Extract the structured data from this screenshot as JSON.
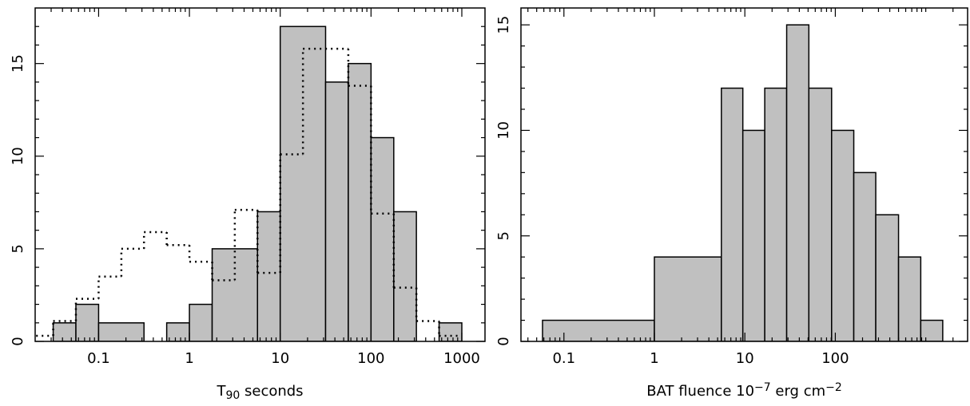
{
  "chart_data": [
    {
      "type": "histogram",
      "log_x": true,
      "xlabel": [
        "T",
        "90",
        " seconds"
      ],
      "xlim": [
        0.02,
        1800
      ],
      "ylim": [
        0,
        18
      ],
      "xticks": [
        0.1,
        1,
        10,
        100,
        1000
      ],
      "xminor_ticks": [
        0.03,
        0.04,
        0.05,
        0.06,
        0.07,
        0.08,
        0.09,
        0.2,
        0.3,
        0.4,
        0.5,
        0.6,
        0.7,
        0.8,
        0.9,
        2,
        3,
        4,
        5,
        6,
        7,
        8,
        9,
        20,
        30,
        40,
        50,
        60,
        70,
        80,
        90,
        200,
        300,
        400,
        500,
        600,
        700,
        800,
        900
      ],
      "yticks": [
        0,
        5,
        10,
        15
      ],
      "yminor_ticks": [
        1,
        2,
        3,
        4,
        6,
        7,
        8,
        9,
        11,
        12,
        13,
        14,
        16,
        17
      ],
      "series": [
        {
          "style": "solid",
          "color": "#c0c0c0",
          "bins": [
            0.0316,
            0.0562,
            0.1,
            0.316,
            0.562,
            1,
            1.78,
            5.62,
            10,
            31.6,
            56.2,
            100,
            178,
            316,
            562,
            1000
          ],
          "values": [
            1,
            2,
            1,
            0,
            1,
            2,
            5,
            7,
            17,
            14,
            15,
            11,
            7,
            0,
            1
          ]
        },
        {
          "style": "dotted",
          "color": "#000000",
          "bins": [
            0.0178,
            0.0316,
            0.0562,
            0.1,
            0.178,
            0.316,
            0.562,
            1,
            1.78,
            3.16,
            5.62,
            10,
            17.8,
            56.2,
            100,
            178,
            316,
            562,
            1000
          ],
          "values": [
            0.3,
            1.1,
            2.3,
            3.5,
            5.0,
            5.9,
            5.2,
            4.3,
            3.3,
            7.1,
            3.7,
            10.1,
            15.8,
            13.8,
            6.9,
            2.9,
            1.1,
            0.3
          ]
        }
      ]
    },
    {
      "type": "histogram",
      "log_x": true,
      "xlabel": [
        "BAT fluence 10",
        "−7",
        " erg cm",
        "−2"
      ],
      "xlim": [
        0.0335,
        2900
      ],
      "ylim": [
        0,
        15.8
      ],
      "xticks": [
        0.1,
        1,
        10,
        100
      ],
      "xminor_ticks": [
        0.04,
        0.05,
        0.06,
        0.07,
        0.08,
        0.09,
        0.2,
        0.3,
        0.4,
        0.5,
        0.6,
        0.7,
        0.8,
        0.9,
        2,
        3,
        4,
        5,
        6,
        7,
        8,
        9,
        20,
        30,
        40,
        50,
        60,
        70,
        80,
        90,
        200,
        300,
        400,
        500,
        600,
        700,
        800,
        900,
        1000,
        2000
      ],
      "yticks": [
        0,
        5,
        10,
        15
      ],
      "yminor_ticks": [
        1,
        2,
        3,
        4,
        6,
        7,
        8,
        9,
        11,
        12,
        13,
        14
      ],
      "series": [
        {
          "style": "solid",
          "color": "#c0c0c0",
          "bins": [
            0.058,
            1,
            5.5,
            9.5,
            16.6,
            29,
            51,
            91,
            160,
            280,
            500,
            880,
            1540
          ],
          "values": [
            1,
            4,
            12,
            10,
            12,
            15,
            12,
            10,
            8,
            6,
            4,
            1
          ]
        }
      ]
    }
  ]
}
